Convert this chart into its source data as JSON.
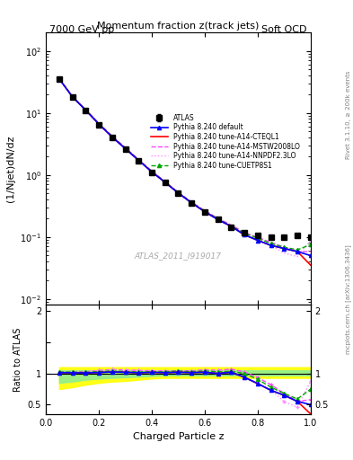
{
  "title_top_left": "7000 GeV pp",
  "title_top_right": "Soft QCD",
  "plot_title": "Momentum fraction z(track jets)",
  "xlabel": "Charged Particle z",
  "ylabel_main": "(1/Njet)dN/dz",
  "ylabel_ratio": "Ratio to ATLAS",
  "right_label_top": "Rivet 3.1.10, ≥ 200k events",
  "right_label_bottom": "mcplots.cern.ch [arXiv:1306.3436]",
  "watermark": "ATLAS_2011_I919017",
  "atlas_marker": "s",
  "atlas_color": "black",
  "atlas_label": "ATLAS",
  "lines": [
    {
      "label": "Pythia 8.240 default",
      "color": "#0000ff",
      "style": "-",
      "marker": "^",
      "markersize": 4
    },
    {
      "label": "Pythia 8.240 tune-A14-CTEQL1",
      "color": "#ff0000",
      "style": "-",
      "marker": null,
      "markersize": 0
    },
    {
      "label": "Pythia 8.240 tune-A14-MSTW2008LO",
      "color": "#ff00ff",
      "style": "--",
      "marker": null,
      "markersize": 0
    },
    {
      "label": "Pythia 8.240 tune-A14-NNPDF2.3LO",
      "color": "#ff66ff",
      "style": ":",
      "marker": null,
      "markersize": 0
    },
    {
      "label": "Pythia 8.240 tune-CUETP8S1",
      "color": "#00aa00",
      "style": "--",
      "marker": "^",
      "markersize": 4
    }
  ],
  "z_values": [
    0.05,
    0.1,
    0.15,
    0.2,
    0.25,
    0.3,
    0.35,
    0.4,
    0.45,
    0.5,
    0.55,
    0.6,
    0.65,
    0.7,
    0.75,
    0.8,
    0.85,
    0.9,
    0.95,
    1.0
  ],
  "atlas_y": [
    35,
    18,
    11,
    6.5,
    4.0,
    2.6,
    1.7,
    1.1,
    0.75,
    0.5,
    0.35,
    0.25,
    0.19,
    0.145,
    0.115,
    0.105,
    0.1,
    0.1,
    0.105,
    0.1
  ],
  "atlas_yerr": [
    1.5,
    0.8,
    0.5,
    0.3,
    0.18,
    0.12,
    0.08,
    0.05,
    0.035,
    0.025,
    0.018,
    0.013,
    0.01,
    0.008,
    0.007,
    0.006,
    0.006,
    0.006,
    0.007,
    0.007
  ],
  "default_y": [
    35.5,
    18.2,
    11.1,
    6.6,
    4.1,
    2.65,
    1.72,
    1.12,
    0.76,
    0.51,
    0.355,
    0.255,
    0.19,
    0.148,
    0.108,
    0.088,
    0.073,
    0.065,
    0.058,
    0.05
  ],
  "cteql1_y": [
    35.5,
    18.2,
    11.1,
    6.6,
    4.1,
    2.65,
    1.72,
    1.12,
    0.76,
    0.51,
    0.355,
    0.255,
    0.19,
    0.148,
    0.108,
    0.088,
    0.073,
    0.065,
    0.058,
    0.035
  ],
  "mstw_y": [
    35.5,
    18.5,
    11.3,
    6.8,
    4.25,
    2.75,
    1.78,
    1.15,
    0.78,
    0.52,
    0.365,
    0.265,
    0.2,
    0.155,
    0.118,
    0.098,
    0.082,
    0.068,
    0.058,
    0.058
  ],
  "nnpdf_y": [
    35.5,
    18.5,
    11.3,
    6.8,
    4.25,
    2.75,
    1.78,
    1.15,
    0.78,
    0.52,
    0.365,
    0.265,
    0.2,
    0.148,
    0.108,
    0.088,
    0.073,
    0.055,
    0.048,
    0.088
  ],
  "cuetp_y": [
    35.8,
    18.4,
    11.2,
    6.7,
    4.15,
    2.68,
    1.74,
    1.13,
    0.77,
    0.52,
    0.36,
    0.26,
    0.195,
    0.15,
    0.115,
    0.095,
    0.078,
    0.068,
    0.062,
    0.075
  ],
  "band_green_lo": [
    0.85,
    0.87,
    0.9,
    0.92,
    0.93,
    0.94,
    0.95,
    0.96,
    0.97,
    0.97,
    0.97,
    0.97,
    0.97,
    0.97,
    0.97,
    0.97,
    0.97,
    0.97,
    0.97,
    0.97
  ],
  "band_green_hi": [
    1.05,
    1.05,
    1.05,
    1.05,
    1.05,
    1.05,
    1.05,
    1.05,
    1.05,
    1.05,
    1.05,
    1.05,
    1.05,
    1.05,
    1.05,
    1.05,
    1.05,
    1.05,
    1.05,
    1.05
  ],
  "band_yellow_lo": [
    0.75,
    0.78,
    0.82,
    0.85,
    0.87,
    0.88,
    0.9,
    0.92,
    0.93,
    0.93,
    0.93,
    0.93,
    0.93,
    0.93,
    0.93,
    0.93,
    0.93,
    0.93,
    0.93,
    0.93
  ],
  "band_yellow_hi": [
    1.1,
    1.1,
    1.1,
    1.1,
    1.1,
    1.1,
    1.1,
    1.1,
    1.1,
    1.1,
    1.1,
    1.1,
    1.1,
    1.1,
    1.1,
    1.1,
    1.1,
    1.1,
    1.1,
    1.1
  ],
  "xlim": [
    0.0,
    1.0
  ],
  "ylim_main": [
    0.008,
    200
  ],
  "ylim_ratio": [
    0.35,
    2.1
  ],
  "bg_color": "#ffffff",
  "grid_color": "#cccccc"
}
